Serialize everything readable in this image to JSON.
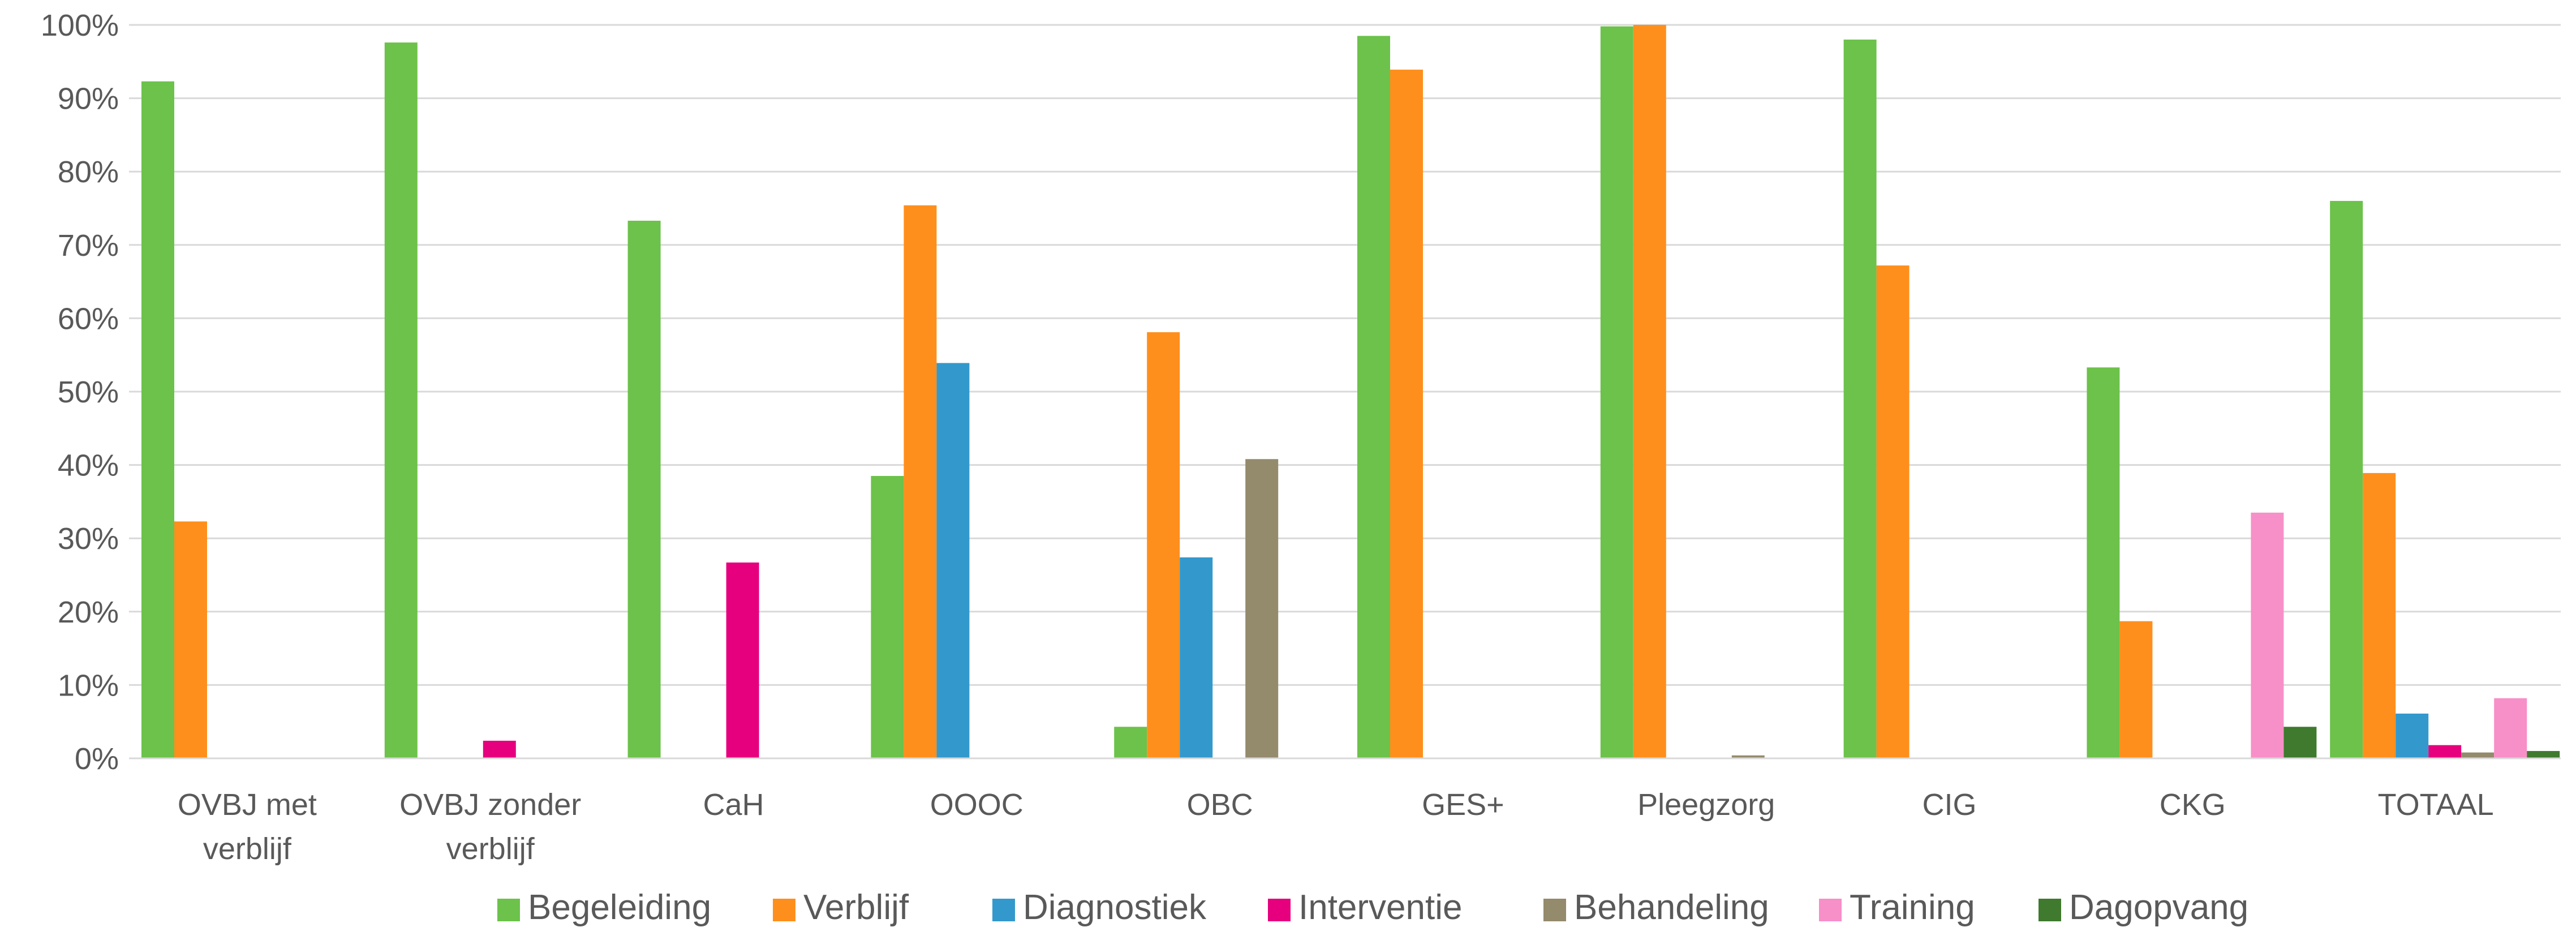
{
  "chart_data": {
    "type": "bar",
    "title": "",
    "xlabel": "",
    "ylabel": "",
    "ylim": [
      0,
      100
    ],
    "y_ticks": [
      0,
      10,
      20,
      30,
      40,
      50,
      60,
      70,
      80,
      90,
      100
    ],
    "y_tick_labels": [
      "0%",
      "10%",
      "20%",
      "30%",
      "40%",
      "50%",
      "60%",
      "70%",
      "80%",
      "90%",
      "100%"
    ],
    "grid": "horizontal",
    "legend_position": "bottom",
    "categories": [
      [
        "OVBJ met",
        "verblijf"
      ],
      [
        "OVBJ zonder",
        "verblijf"
      ],
      [
        "CaH"
      ],
      [
        "OOOC"
      ],
      [
        "OBC"
      ],
      [
        "GES+"
      ],
      [
        "Pleegzorg"
      ],
      [
        "CIG"
      ],
      [
        "CKG"
      ],
      [
        "TOTAAL"
      ]
    ],
    "series": [
      {
        "name": "Begeleiding",
        "color": "#6CC24A",
        "values": [
          92.3,
          97.6,
          73.3,
          38.5,
          4.3,
          98.5,
          99.8,
          98.0,
          53.3,
          76.0
        ]
      },
      {
        "name": "Verblijf",
        "color": "#FF8F1C",
        "values": [
          32.3,
          0,
          0,
          75.4,
          58.1,
          93.9,
          100.0,
          67.2,
          18.7,
          38.9
        ]
      },
      {
        "name": "Diagnostiek",
        "color": "#3399CC",
        "values": [
          0,
          0,
          0,
          53.9,
          27.4,
          0,
          0,
          0,
          0,
          6.1
        ]
      },
      {
        "name": "Interventie",
        "color": "#E6007E",
        "values": [
          0,
          2.4,
          26.7,
          0,
          0,
          0,
          0,
          0,
          0,
          1.8
        ]
      },
      {
        "name": "Behandeling",
        "color": "#948A6C",
        "values": [
          0,
          0,
          0,
          0,
          40.8,
          0,
          0.4,
          0,
          0,
          0.8
        ]
      },
      {
        "name": "Training",
        "color": "#F78FC8",
        "values": [
          0,
          0,
          0,
          0,
          0,
          0,
          0,
          0,
          33.5,
          8.2
        ]
      },
      {
        "name": "Dagopvang",
        "color": "#3F7A2E",
        "values": [
          0,
          0,
          0,
          0,
          0,
          0,
          0,
          0,
          4.3,
          1.0
        ]
      }
    ]
  }
}
